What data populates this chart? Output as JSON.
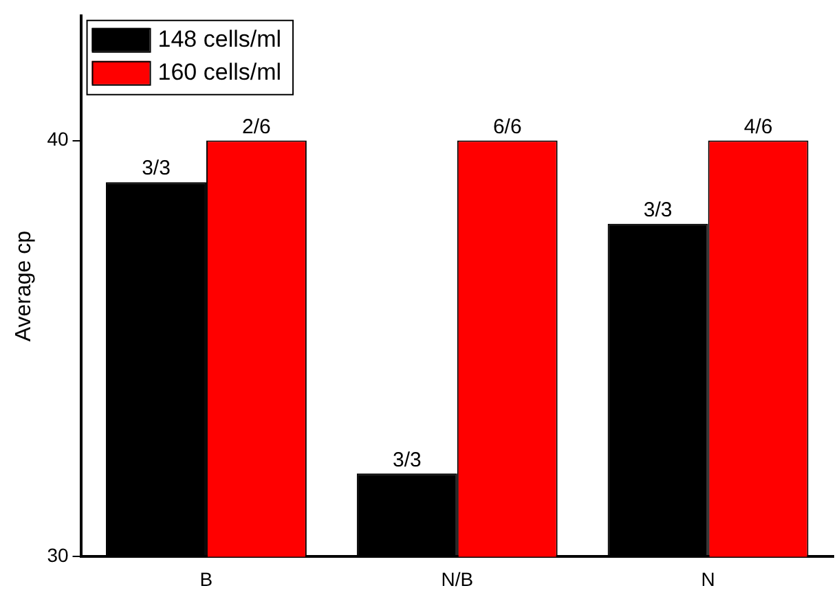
{
  "chart_data": {
    "type": "bar",
    "ylabel": "Average cp",
    "categories": [
      "B",
      "N/B",
      "N"
    ],
    "series": [
      {
        "name": "148 cells/ml",
        "color": "#000000",
        "values": [
          39,
          32,
          38
        ]
      },
      {
        "name": "160 cells/ml",
        "color": "#ff0000",
        "values": [
          40,
          40,
          40
        ]
      }
    ],
    "annotations": [
      {
        "text": "3/3",
        "x": "B",
        "y": 39
      },
      {
        "text": "2/6",
        "x": "B",
        "y": 40
      },
      {
        "text": "3/3",
        "x": "N/B",
        "y": 32
      },
      {
        "text": "6/6",
        "x": "N/B",
        "y": 40
      },
      {
        "text": "3/3",
        "x": "N",
        "y": 38
      },
      {
        "text": "4/6",
        "x": "N",
        "y": 40
      }
    ],
    "ylim": [
      30,
      43
    ],
    "yticks": [
      30,
      40
    ],
    "grid": false,
    "legend": "top left"
  }
}
